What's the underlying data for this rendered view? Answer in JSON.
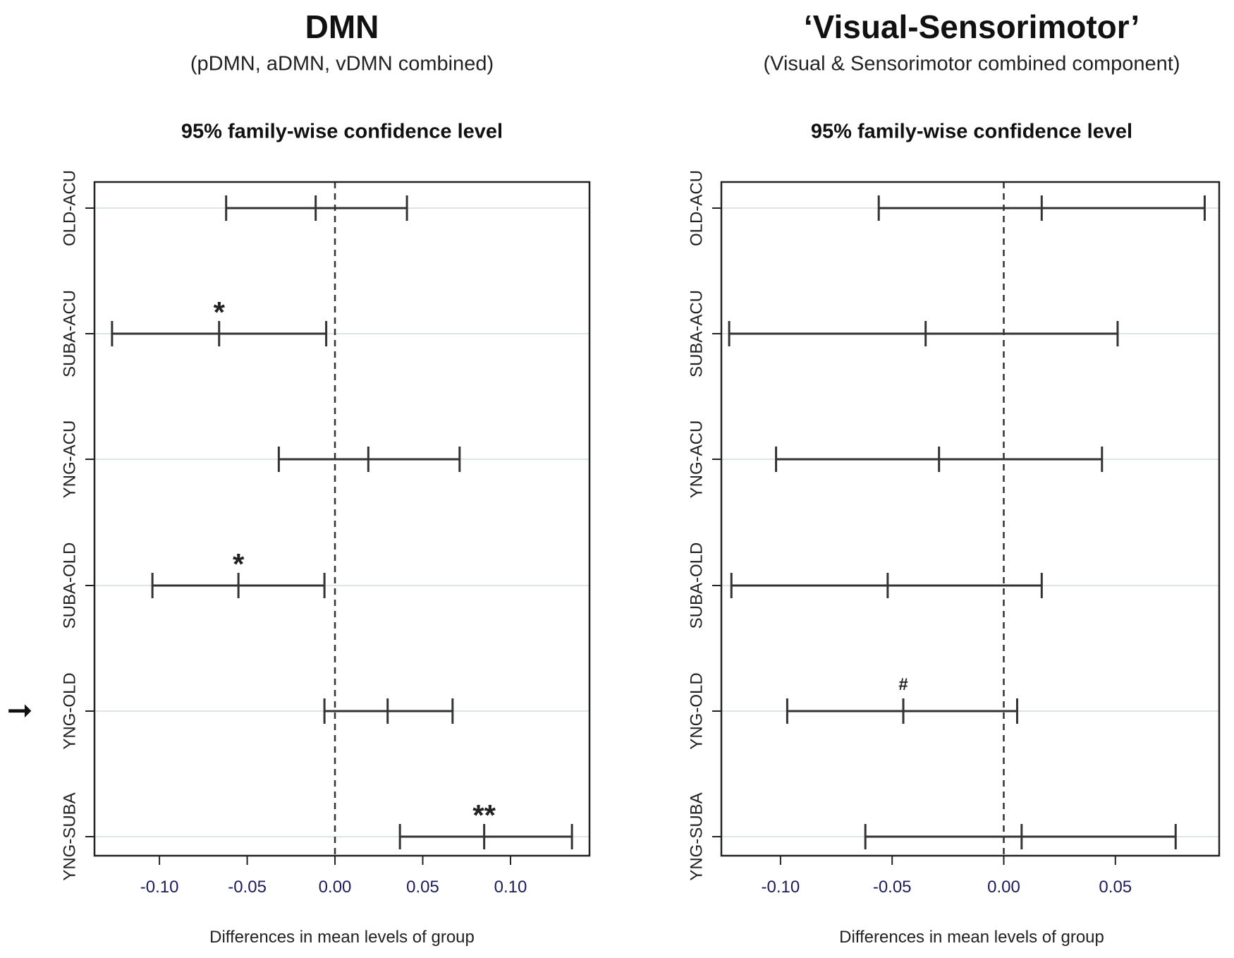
{
  "chart_data": [
    {
      "type": "errorbar",
      "title": "DMN",
      "subtitle": "(pDMN, aDMN, vDMN combined)",
      "plot_title": "95% family-wise confidence level",
      "xlabel": "Differences in mean levels of group",
      "xlim": [
        -0.137,
        0.145
      ],
      "xticks": [
        -0.1,
        -0.05,
        0.0,
        0.05,
        0.1
      ],
      "xtick_labels": [
        "-0.10",
        "-0.05",
        "0.00",
        "0.05",
        "0.10"
      ],
      "reference_line": 0,
      "categories": [
        "OLD-ACU",
        "SUBA-ACU",
        "YNG-ACU",
        "SUBA-OLD",
        "YNG-OLD",
        "YNG-SUBA"
      ],
      "estimates": [
        -0.011,
        -0.066,
        0.019,
        -0.055,
        0.03,
        0.085
      ],
      "lower": [
        -0.062,
        -0.127,
        -0.032,
        -0.104,
        -0.006,
        0.037
      ],
      "upper": [
        0.041,
        -0.005,
        0.071,
        -0.006,
        0.067,
        0.135
      ],
      "annotations": [
        {
          "category": "SUBA-ACU",
          "text": "*"
        },
        {
          "category": "SUBA-OLD",
          "text": "*"
        },
        {
          "category": "YNG-SUBA",
          "text": "**"
        }
      ],
      "highlight_arrow": {
        "category": "YNG-OLD",
        "symbol": "➞"
      }
    },
    {
      "type": "errorbar",
      "title": "‘Visual-Sensorimotor’",
      "subtitle": "(Visual & Sensorimotor combined component)",
      "plot_title": "95% family-wise confidence level",
      "xlabel": "Differences in mean levels of group",
      "xlim": [
        -0.1265,
        0.0965
      ],
      "xticks": [
        -0.1,
        -0.05,
        0.0,
        0.05
      ],
      "xtick_labels": [
        "-0.10",
        "-0.05",
        "0.00",
        "0.05"
      ],
      "reference_line": 0,
      "categories": [
        "OLD-ACU",
        "SUBA-ACU",
        "YNG-ACU",
        "SUBA-OLD",
        "YNG-OLD",
        "YNG-SUBA"
      ],
      "estimates": [
        0.017,
        -0.035,
        -0.029,
        -0.052,
        -0.045,
        0.008
      ],
      "lower": [
        -0.056,
        -0.123,
        -0.102,
        -0.122,
        -0.097,
        -0.062
      ],
      "upper": [
        0.09,
        0.051,
        0.044,
        0.017,
        0.006,
        0.077
      ],
      "annotations": [
        {
          "category": "YNG-OLD",
          "text": "#"
        }
      ]
    }
  ]
}
